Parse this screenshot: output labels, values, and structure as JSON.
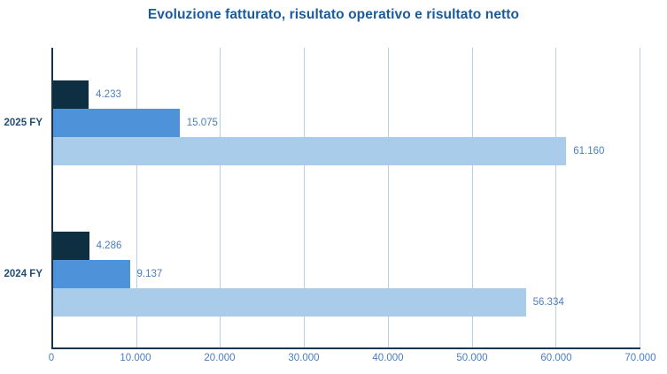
{
  "title": "Evoluzione fatturato, risultato operativo e risultato netto",
  "colors": {
    "title": "#1b5a9b",
    "category_label": "#1f4e79",
    "value_label": "#4a7ebd",
    "tick_label": "#4a7ebd",
    "axis_line": "#16344a",
    "gridline": "#b9cfe6",
    "bar_dark": "#0e2f42",
    "bar_medium": "#4e92d9",
    "bar_light": "#a9cceb"
  },
  "chart_data": {
    "type": "bar",
    "orientation": "horizontal",
    "title": "Evoluzione fatturato, risultato operativo e risultato netto",
    "categories": [
      "2025 FY",
      "2024 FY"
    ],
    "series": [
      {
        "name": "risultato netto",
        "color": "#0e2f42",
        "values": [
          4233,
          4286
        ],
        "labels": [
          "4.233",
          "4.286"
        ]
      },
      {
        "name": "risultato operativo",
        "color": "#4e92d9",
        "values": [
          15075,
          9137
        ],
        "labels": [
          "15.075",
          "9.137"
        ]
      },
      {
        "name": "fatturato",
        "color": "#a9cceb",
        "values": [
          61160,
          56334
        ],
        "labels": [
          "61.160",
          "56.334"
        ]
      }
    ],
    "xlim": [
      0,
      70000
    ],
    "xticks": [
      0,
      10000,
      20000,
      30000,
      40000,
      50000,
      60000,
      70000
    ],
    "xtick_labels": [
      "0",
      "10.000",
      "20.000",
      "30.000",
      "40.000",
      "50.000",
      "60.000",
      "70.000"
    ],
    "grid": "vertical",
    "legend": "none"
  }
}
